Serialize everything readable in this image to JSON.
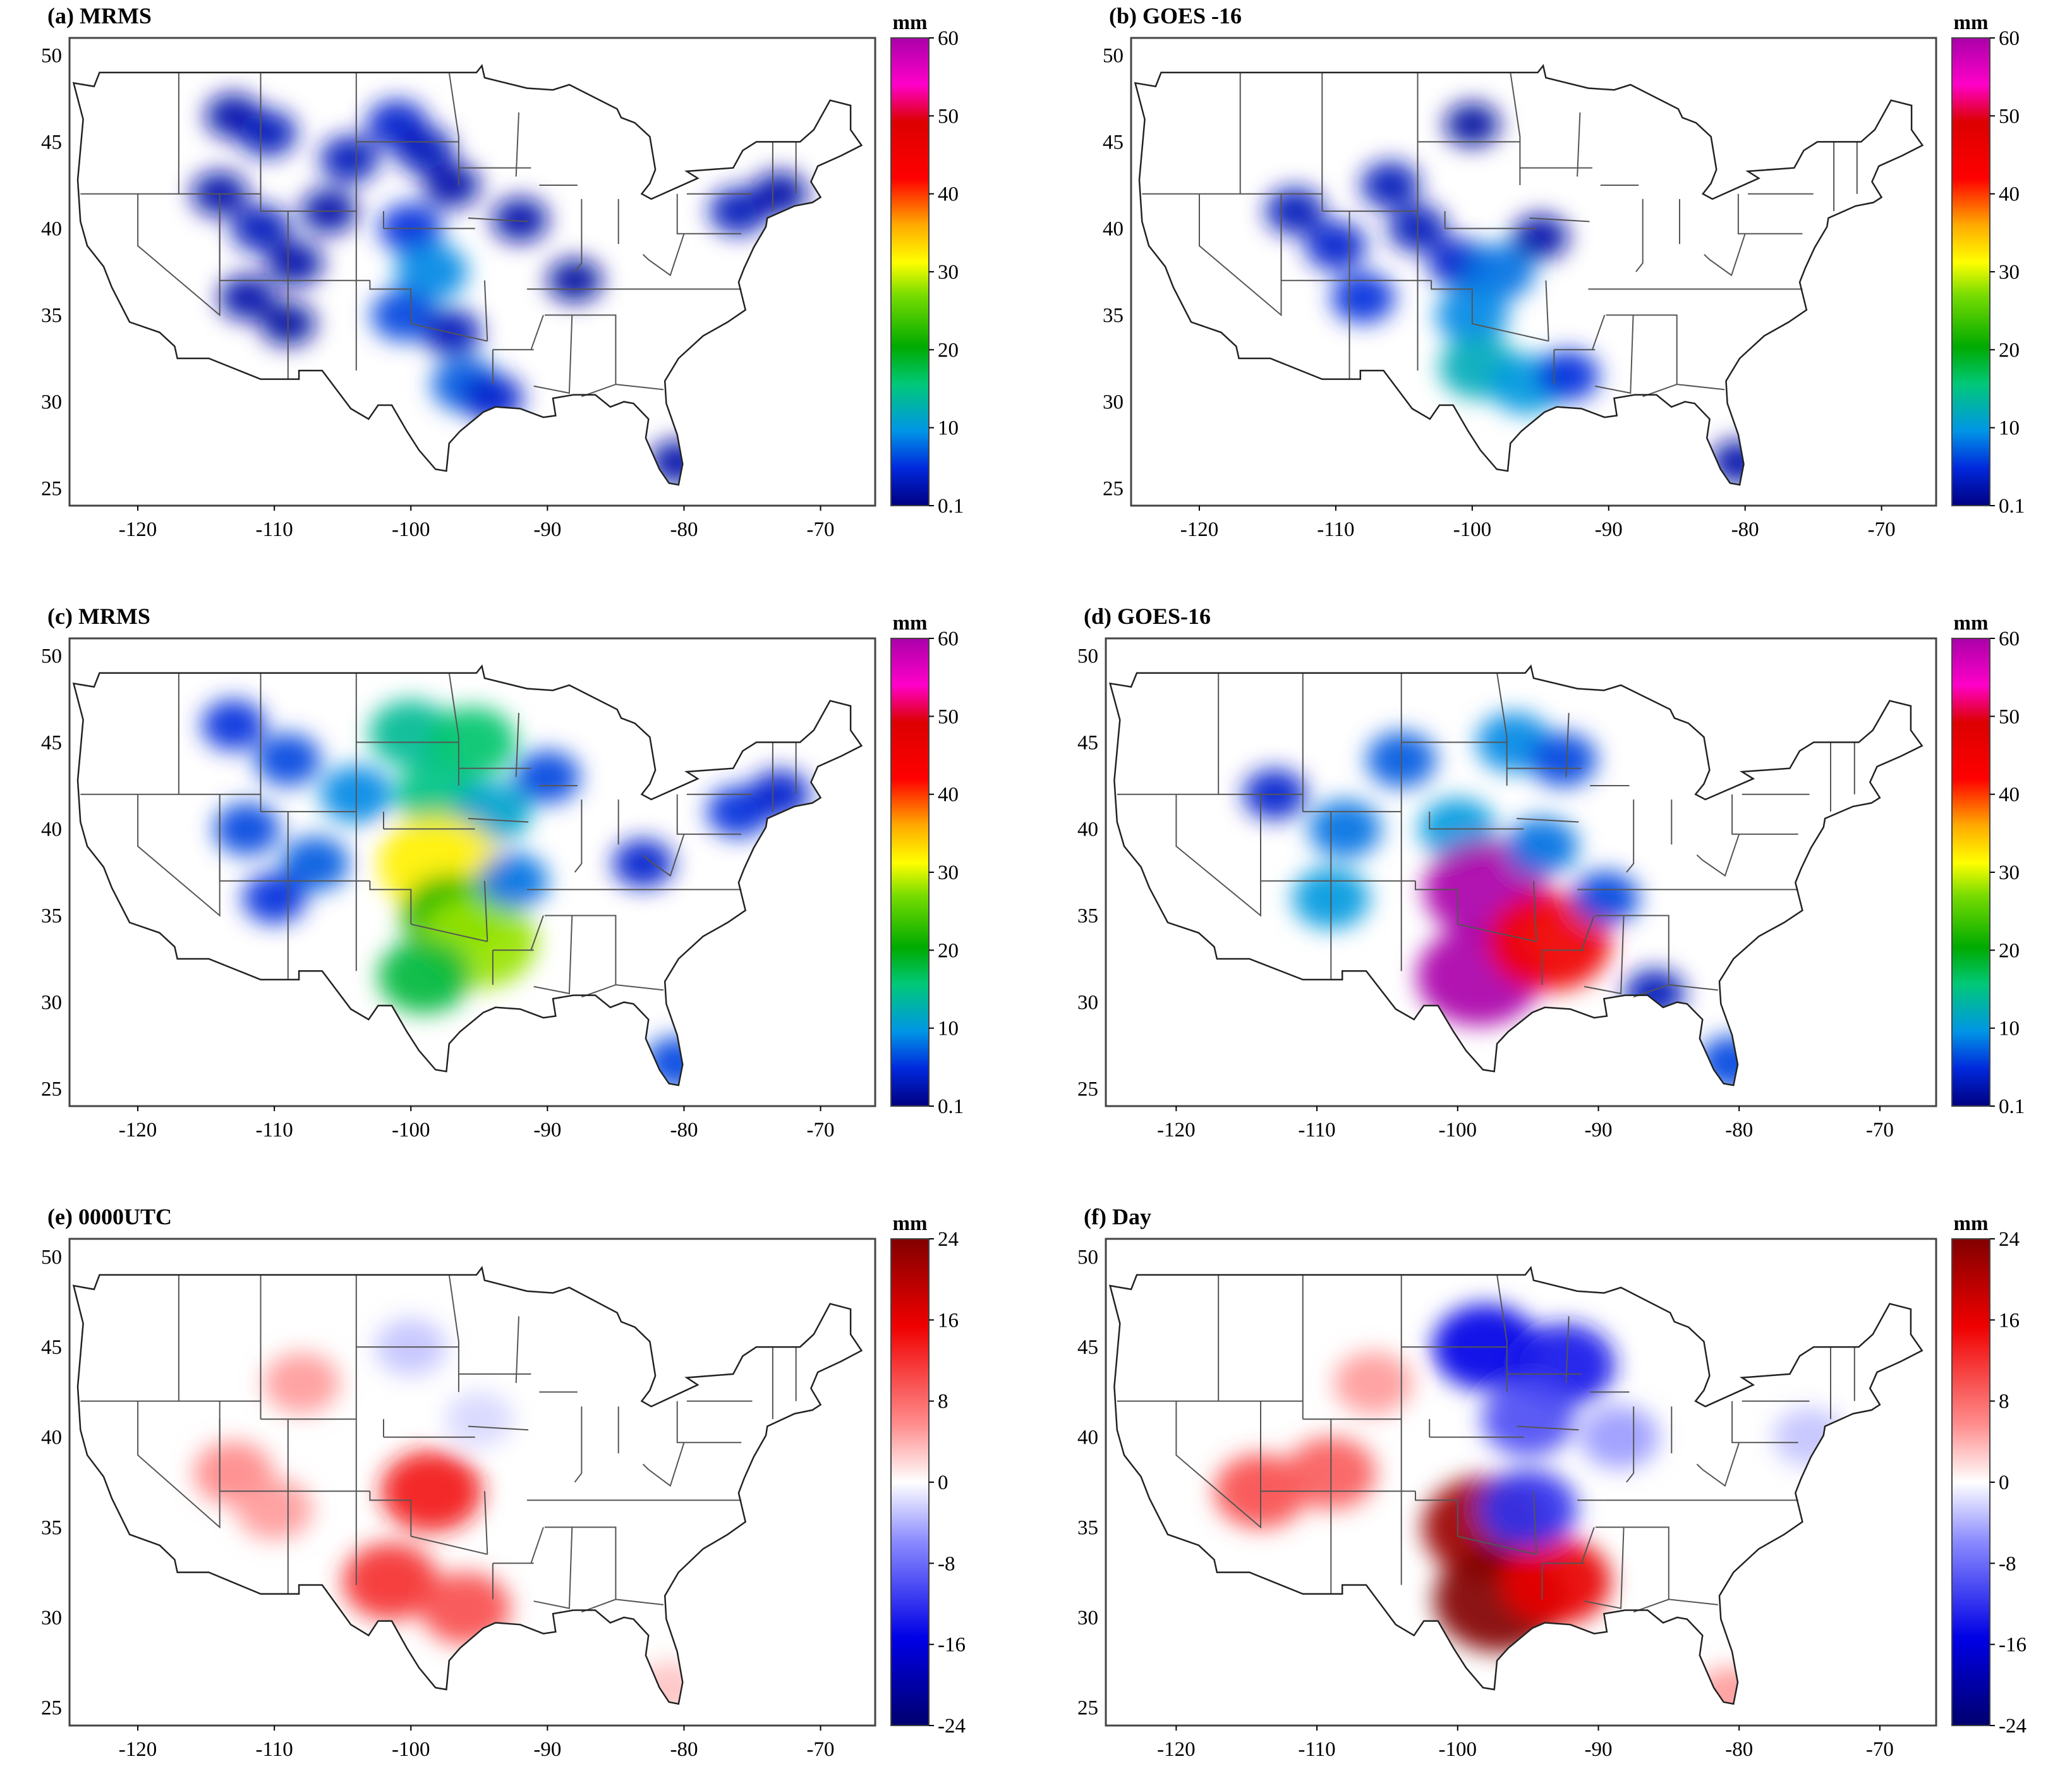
{
  "chart_data": [
    {
      "id": "a",
      "title": "(a) MRMS",
      "type": "heatmap",
      "variable": "precipitation",
      "unit": "mm",
      "colorbar": {
        "kind": "precip",
        "ticks": [
          "60",
          "50",
          "40",
          "30",
          "20",
          "10",
          "0.1"
        ]
      },
      "lon_ticks": [
        "-120",
        "-110",
        "-100",
        "-90",
        "-80",
        "-70"
      ],
      "lat_ticks": [
        "50",
        "45",
        "40",
        "35",
        "30",
        "25"
      ],
      "xlim": [
        -125,
        -66
      ],
      "ylim": [
        24,
        51
      ],
      "cells": [
        {
          "lon": -113,
          "lat": 46.5,
          "v": 2
        },
        {
          "lon": -110.5,
          "lat": 45.5,
          "v": 3
        },
        {
          "lon": -114,
          "lat": 42,
          "v": 2
        },
        {
          "lon": -111,
          "lat": 40,
          "v": 3
        },
        {
          "lon": -108.5,
          "lat": 38,
          "v": 2
        },
        {
          "lon": -112,
          "lat": 36,
          "v": 2
        },
        {
          "lon": -109,
          "lat": 34.5,
          "v": 1.5
        },
        {
          "lon": -104.5,
          "lat": 44,
          "v": 3
        },
        {
          "lon": -101,
          "lat": 46,
          "v": 4
        },
        {
          "lon": -99,
          "lat": 44.5,
          "v": 3
        },
        {
          "lon": -97,
          "lat": 42.5,
          "v": 2
        },
        {
          "lon": -100,
          "lat": 40,
          "v": 5
        },
        {
          "lon": -98.5,
          "lat": 37.5,
          "v": 9
        },
        {
          "lon": -100.5,
          "lat": 35,
          "v": 6
        },
        {
          "lon": -97,
          "lat": 34,
          "v": 3
        },
        {
          "lon": -96,
          "lat": 31,
          "v": 7
        },
        {
          "lon": -94,
          "lat": 30.2,
          "v": 4
        },
        {
          "lon": -106,
          "lat": 41,
          "v": 2
        },
        {
          "lon": -92,
          "lat": 40.5,
          "v": 2
        },
        {
          "lon": -88,
          "lat": 37,
          "v": 1.5
        },
        {
          "lon": -80.5,
          "lat": 26.5,
          "v": 2
        },
        {
          "lon": -76,
          "lat": 41,
          "v": 3
        },
        {
          "lon": -73,
          "lat": 42,
          "v": 2
        }
      ]
    },
    {
      "id": "b",
      "title": "(b) GOES -16",
      "type": "heatmap",
      "variable": "precipitation",
      "unit": "mm",
      "colorbar": {
        "kind": "precip",
        "ticks": [
          "60",
          "50",
          "40",
          "30",
          "20",
          "10",
          "0.1"
        ]
      },
      "lon_ticks": [
        "-120",
        "-110",
        "-100",
        "-90",
        "-80",
        "-70"
      ],
      "lat_ticks": [
        "50",
        "45",
        "40",
        "35",
        "30",
        "25"
      ],
      "xlim": [
        -125,
        -66
      ],
      "ylim": [
        24,
        51
      ],
      "cells": [
        {
          "lon": -113,
          "lat": 41,
          "v": 3
        },
        {
          "lon": -110,
          "lat": 39,
          "v": 4
        },
        {
          "lon": -108,
          "lat": 36,
          "v": 5
        },
        {
          "lon": -106,
          "lat": 42.5,
          "v": 3
        },
        {
          "lon": -104,
          "lat": 40,
          "v": 3
        },
        {
          "lon": -101,
          "lat": 38,
          "v": 4
        },
        {
          "lon": -98,
          "lat": 37.5,
          "v": 8
        },
        {
          "lon": -100,
          "lat": 35,
          "v": 9
        },
        {
          "lon": -99.5,
          "lat": 32,
          "v": 12
        },
        {
          "lon": -96,
          "lat": 31,
          "v": 10
        },
        {
          "lon": -93,
          "lat": 31.5,
          "v": 5
        },
        {
          "lon": -95,
          "lat": 39.5,
          "v": 2
        },
        {
          "lon": -80.5,
          "lat": 26.5,
          "v": 2
        },
        {
          "lon": -100,
          "lat": 46,
          "v": 1.5
        }
      ]
    },
    {
      "id": "c",
      "title": "(c) MRMS",
      "type": "heatmap",
      "variable": "precipitation",
      "unit": "mm",
      "colorbar": {
        "kind": "precip",
        "ticks": [
          "60",
          "50",
          "40",
          "30",
          "20",
          "10",
          "0.1"
        ]
      },
      "lon_ticks": [
        "-120",
        "-110",
        "-100",
        "-90",
        "-80",
        "-70"
      ],
      "lat_ticks": [
        "50",
        "45",
        "40",
        "35",
        "30",
        "25"
      ],
      "xlim": [
        -125,
        -66
      ],
      "ylim": [
        24,
        51
      ],
      "cells": [
        {
          "lon": -113,
          "lat": 46,
          "v": 5
        },
        {
          "lon": -109,
          "lat": 44,
          "v": 6
        },
        {
          "lon": -112,
          "lat": 40,
          "v": 6
        },
        {
          "lon": -107,
          "lat": 38,
          "v": 7
        },
        {
          "lon": -110,
          "lat": 36,
          "v": 5
        },
        {
          "lon": -104,
          "lat": 42,
          "v": 9
        },
        {
          "lon": -100,
          "lat": 45.5,
          "v": 14
        },
        {
          "lon": -95.5,
          "lat": 45,
          "v": 16
        },
        {
          "lon": -98,
          "lat": 42,
          "v": 15
        },
        {
          "lon": -94,
          "lat": 41,
          "v": 11
        },
        {
          "lon": -98,
          "lat": 38,
          "v": 32
        },
        {
          "lon": -97,
          "lat": 35,
          "v": 22
        },
        {
          "lon": -95,
          "lat": 33.5,
          "v": 28
        },
        {
          "lon": -99,
          "lat": 31.5,
          "v": 18
        },
        {
          "lon": -92.5,
          "lat": 37,
          "v": 8
        },
        {
          "lon": -90,
          "lat": 43,
          "v": 6
        },
        {
          "lon": -83,
          "lat": 38,
          "v": 4
        },
        {
          "lon": -80.5,
          "lat": 26.5,
          "v": 6
        },
        {
          "lon": -76,
          "lat": 41,
          "v": 5
        },
        {
          "lon": -73,
          "lat": 42,
          "v": 4
        }
      ]
    },
    {
      "id": "d",
      "title": "(d) GOES-16",
      "type": "heatmap",
      "variable": "precipitation",
      "unit": "mm",
      "colorbar": {
        "kind": "precip",
        "ticks": [
          "60",
          "50",
          "40",
          "30",
          "20",
          "10",
          "0.1"
        ]
      },
      "lon_ticks": [
        "-120",
        "-110",
        "-100",
        "-90",
        "-80",
        "-70"
      ],
      "lat_ticks": [
        "50",
        "45",
        "40",
        "35",
        "30",
        "25"
      ],
      "xlim": [
        -125,
        -66
      ],
      "ylim": [
        24,
        51
      ],
      "cells": [
        {
          "lon": -113,
          "lat": 42,
          "v": 4
        },
        {
          "lon": -108,
          "lat": 40,
          "v": 8
        },
        {
          "lon": -109,
          "lat": 36,
          "v": 10
        },
        {
          "lon": -104,
          "lat": 44,
          "v": 7
        },
        {
          "lon": -100,
          "lat": 40,
          "v": 10
        },
        {
          "lon": -96,
          "lat": 45,
          "v": 9
        },
        {
          "lon": -92.5,
          "lat": 44,
          "v": 6
        },
        {
          "lon": -98,
          "lat": 36.5,
          "v": 60
        },
        {
          "lon": -98.5,
          "lat": 31.5,
          "v": 60
        },
        {
          "lon": -93.5,
          "lat": 33.5,
          "v": 45
        },
        {
          "lon": -94,
          "lat": 39,
          "v": 8
        },
        {
          "lon": -89.5,
          "lat": 36,
          "v": 6
        },
        {
          "lon": -80.5,
          "lat": 26.5,
          "v": 6
        },
        {
          "lon": -86,
          "lat": 30.5,
          "v": 3
        }
      ]
    },
    {
      "id": "e",
      "title": "(e) 0000UTC",
      "type": "heatmap",
      "variable": "precipitation difference",
      "unit": "mm",
      "colorbar": {
        "kind": "diff",
        "ticks": [
          "24",
          "16",
          "8",
          "0",
          "-8",
          "-16",
          "-24"
        ]
      },
      "lon_ticks": [
        "-120",
        "-110",
        "-100",
        "-90",
        "-80",
        "-70"
      ],
      "lat_ticks": [
        "50",
        "45",
        "40",
        "35",
        "30",
        "25"
      ],
      "xlim": [
        -125,
        -66
      ],
      "ylim": [
        24,
        51
      ],
      "cells": [
        {
          "lon": -113,
          "lat": 38,
          "v": 6
        },
        {
          "lon": -110,
          "lat": 36,
          "v": 5
        },
        {
          "lon": -108,
          "lat": 43,
          "v": 5
        },
        {
          "lon": -98.5,
          "lat": 37,
          "v": 14
        },
        {
          "lon": -101.5,
          "lat": 32,
          "v": 12
        },
        {
          "lon": -96,
          "lat": 30.5,
          "v": 10
        },
        {
          "lon": -100,
          "lat": 45,
          "v": -3
        },
        {
          "lon": -95,
          "lat": 41,
          "v": -2
        },
        {
          "lon": -81,
          "lat": 26,
          "v": 3
        }
      ]
    },
    {
      "id": "f",
      "title": "(f) Day",
      "type": "heatmap",
      "variable": "precipitation difference",
      "unit": "mm",
      "colorbar": {
        "kind": "diff",
        "ticks": [
          "24",
          "16",
          "8",
          "0",
          "-8",
          "-16",
          "-24"
        ]
      },
      "lon_ticks": [
        "-120",
        "-110",
        "-100",
        "-90",
        "-80",
        "-70"
      ],
      "lat_ticks": [
        "50",
        "45",
        "40",
        "35",
        "30",
        "25"
      ],
      "xlim": [
        -125,
        -66
      ],
      "ylim": [
        24,
        51
      ],
      "cells": [
        {
          "lon": -114,
          "lat": 37,
          "v": 10
        },
        {
          "lon": -109,
          "lat": 38,
          "v": 9
        },
        {
          "lon": -106,
          "lat": 43,
          "v": 5
        },
        {
          "lon": -98,
          "lat": 35,
          "v": 22
        },
        {
          "lon": -97,
          "lat": 31,
          "v": 24
        },
        {
          "lon": -93,
          "lat": 32,
          "v": 16
        },
        {
          "lon": -98,
          "lat": 45,
          "v": -15
        },
        {
          "lon": -92.5,
          "lat": 44,
          "v": -14
        },
        {
          "lon": -95,
          "lat": 41,
          "v": -10
        },
        {
          "lon": -95,
          "lat": 36,
          "v": -12
        },
        {
          "lon": -88.5,
          "lat": 40,
          "v": -5
        },
        {
          "lon": -75,
          "lat": 40,
          "v": -3
        },
        {
          "lon": -80.5,
          "lat": 25.5,
          "v": 5
        }
      ]
    }
  ]
}
